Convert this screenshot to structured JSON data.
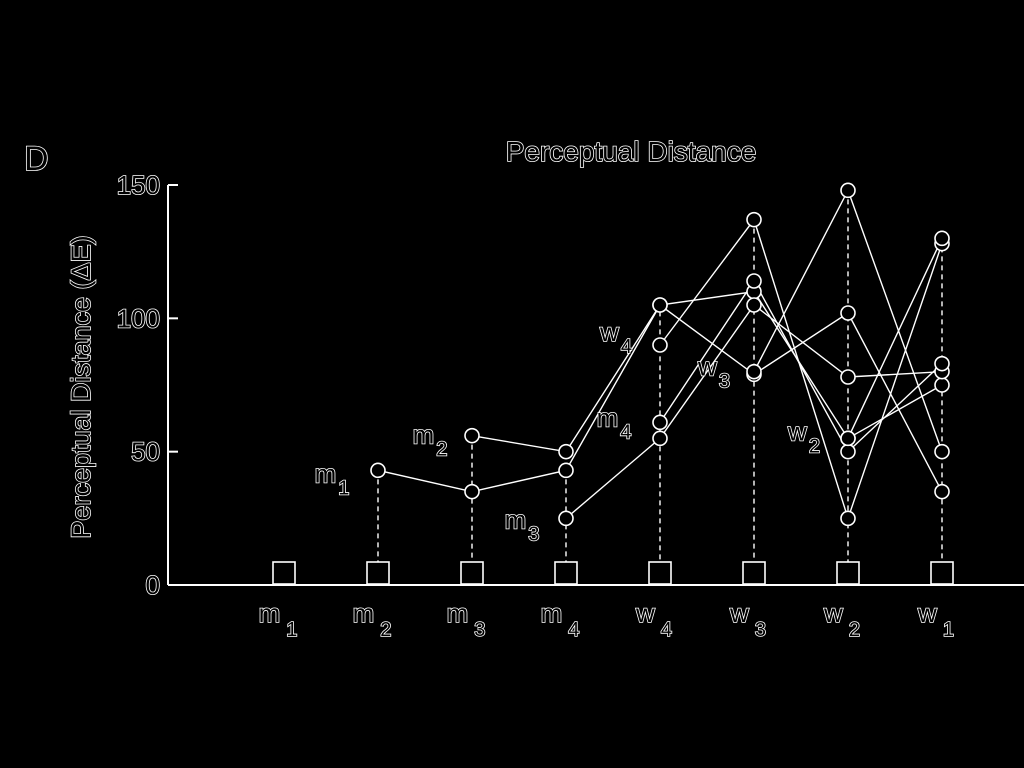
{
  "panel_label": "D",
  "chart_data": {
    "type": "line",
    "title": "Perceptual Distance",
    "xlabel": "",
    "ylabel": "Perceptual Distance (ΔE)",
    "ylim": [
      0,
      150
    ],
    "yticks": [
      0,
      50,
      100,
      150
    ],
    "categories": [
      "m1",
      "m2",
      "m3",
      "m4",
      "w4",
      "w3",
      "w2",
      "w1"
    ],
    "category_labels": [
      {
        "base": "m",
        "sub": "1"
      },
      {
        "base": "m",
        "sub": "2"
      },
      {
        "base": "m",
        "sub": "3"
      },
      {
        "base": "m",
        "sub": "4"
      },
      {
        "base": "w",
        "sub": "4"
      },
      {
        "base": "w",
        "sub": "3"
      },
      {
        "base": "w",
        "sub": "2"
      },
      {
        "base": "w",
        "sub": "1"
      }
    ],
    "series": [
      {
        "label_base": "m",
        "label_sub": "1",
        "start_index": 2,
        "values": [
          null,
          43,
          35,
          43,
          105,
          110,
          55,
          75
        ]
      },
      {
        "label_base": "m",
        "label_sub": "2",
        "start_index": 3,
        "values": [
          null,
          null,
          56,
          50,
          105,
          79,
          102,
          35
        ]
      },
      {
        "label_base": "m",
        "label_sub": "3",
        "start_index": 4,
        "values": [
          null,
          null,
          null,
          25,
          55,
          105,
          78,
          80
        ]
      },
      {
        "label_base": "m",
        "label_sub": "4",
        "start_index": 5,
        "values": [
          null,
          null,
          null,
          null,
          61,
          114,
          50,
          83
        ]
      },
      {
        "label_base": "w",
        "label_sub": "4",
        "start_index": 5,
        "values": [
          null,
          null,
          null,
          null,
          90,
          137,
          25,
          128
        ]
      },
      {
        "label_base": "w",
        "label_sub": "3",
        "start_index": 6,
        "values": [
          null,
          null,
          null,
          null,
          null,
          80,
          148,
          50
        ]
      },
      {
        "label_base": "w",
        "label_sub": "2",
        "start_index": 7,
        "values": [
          null,
          null,
          null,
          null,
          null,
          null,
          55,
          130
        ]
      }
    ],
    "dropline_tops": [
      null,
      43,
      56,
      43,
      106,
      137,
      148,
      130
    ],
    "grid": false
  }
}
